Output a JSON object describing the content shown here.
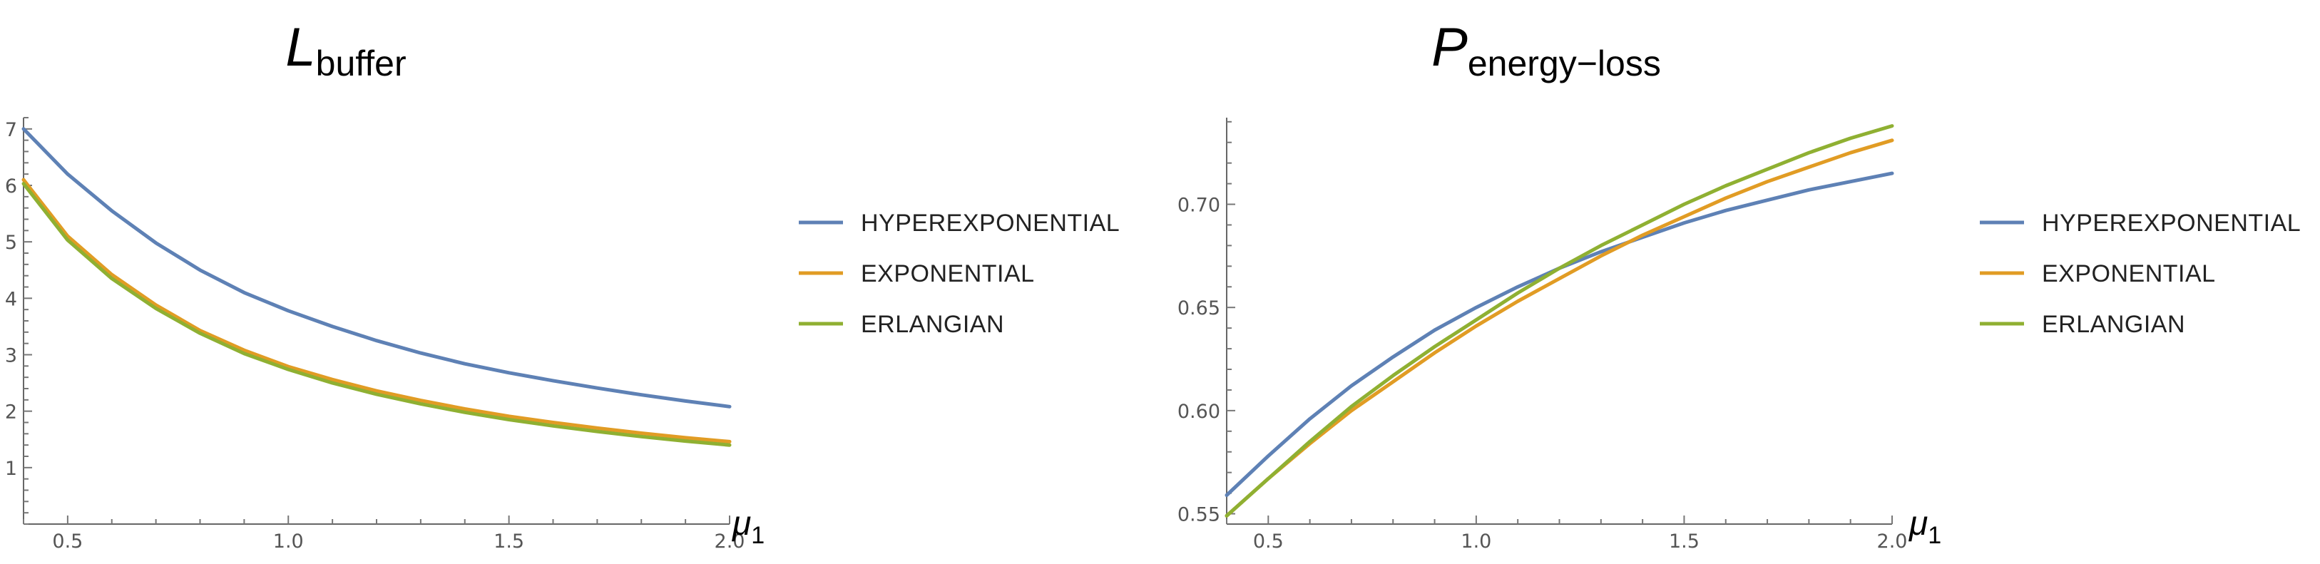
{
  "colors": {
    "hyperexponential": "#5e81b5",
    "exponential": "#e19c24",
    "erlangian": "#8fb032"
  },
  "chart_data": [
    {
      "type": "line",
      "title_main": "L",
      "title_sub": "buffer",
      "xlabel_main": "μ",
      "xlabel_sub": "1",
      "ylabel": "",
      "xlim": [
        0.4,
        2.0
      ],
      "ylim": [
        0,
        7.2
      ],
      "x_ticks": [
        "0.5",
        "1.0",
        "1.5",
        "2.0"
      ],
      "y_ticks": [
        "1",
        "2",
        "3",
        "4",
        "5",
        "6",
        "7"
      ],
      "legend_position": "right",
      "x": [
        0.4,
        0.5,
        0.6,
        0.7,
        0.8,
        0.9,
        1.0,
        1.1,
        1.2,
        1.3,
        1.4,
        1.5,
        1.6,
        1.7,
        1.8,
        1.9,
        2.0
      ],
      "series": [
        {
          "name": "HYPEREXPONENTIAL",
          "color_key": "hyperexponential",
          "values": [
            7.0,
            6.2,
            5.55,
            4.98,
            4.5,
            4.1,
            3.78,
            3.5,
            3.25,
            3.03,
            2.84,
            2.68,
            2.54,
            2.41,
            2.29,
            2.18,
            2.08
          ]
        },
        {
          "name": "EXPONENTIAL",
          "color_key": "exponential",
          "values": [
            6.1,
            5.1,
            4.42,
            3.88,
            3.43,
            3.08,
            2.79,
            2.56,
            2.36,
            2.19,
            2.04,
            1.91,
            1.8,
            1.7,
            1.61,
            1.53,
            1.46
          ]
        },
        {
          "name": "ERLANGIAN",
          "color_key": "erlangian",
          "values": [
            6.03,
            5.03,
            4.35,
            3.82,
            3.38,
            3.02,
            2.74,
            2.5,
            2.3,
            2.13,
            1.98,
            1.85,
            1.74,
            1.64,
            1.55,
            1.47,
            1.4
          ]
        }
      ]
    },
    {
      "type": "line",
      "title_main": "P",
      "title_sub": "energy−loss",
      "xlabel_main": "μ",
      "xlabel_sub": "1",
      "ylabel": "",
      "xlim": [
        0.4,
        2.0
      ],
      "ylim": [
        0.545,
        0.742
      ],
      "x_ticks": [
        "0.5",
        "1.0",
        "1.5",
        "2.0"
      ],
      "y_ticks": [
        "0.55",
        "0.60",
        "0.65",
        "0.70"
      ],
      "legend_position": "right",
      "x": [
        0.4,
        0.5,
        0.6,
        0.7,
        0.8,
        0.9,
        1.0,
        1.1,
        1.2,
        1.3,
        1.4,
        1.5,
        1.6,
        1.7,
        1.8,
        1.9,
        2.0
      ],
      "series": [
        {
          "name": "HYPEREXPONENTIAL",
          "color_key": "hyperexponential",
          "values": [
            0.559,
            0.578,
            0.596,
            0.612,
            0.626,
            0.639,
            0.65,
            0.66,
            0.669,
            0.677,
            0.684,
            0.691,
            0.697,
            0.702,
            0.707,
            0.711,
            0.715
          ]
        },
        {
          "name": "EXPONENTIAL",
          "color_key": "exponential",
          "values": [
            0.549,
            0.567,
            0.584,
            0.6,
            0.614,
            0.628,
            0.641,
            0.653,
            0.664,
            0.675,
            0.685,
            0.694,
            0.703,
            0.711,
            0.718,
            0.725,
            0.731
          ]
        },
        {
          "name": "ERLANGIAN",
          "color_key": "erlangian",
          "values": [
            0.549,
            0.567,
            0.585,
            0.602,
            0.617,
            0.631,
            0.644,
            0.657,
            0.669,
            0.68,
            0.69,
            0.7,
            0.709,
            0.717,
            0.725,
            0.732,
            0.738
          ]
        }
      ]
    }
  ]
}
